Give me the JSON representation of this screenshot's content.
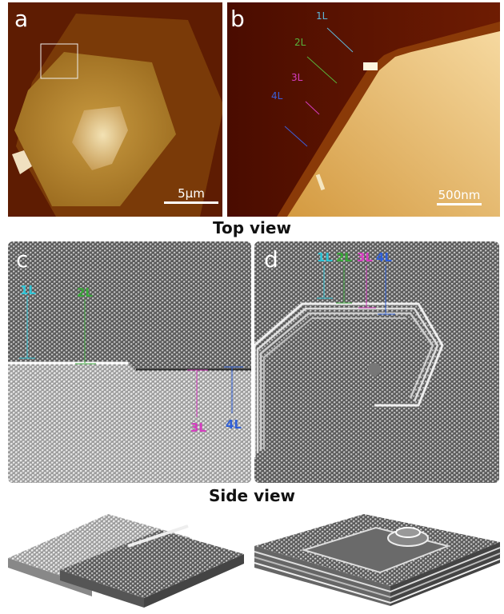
{
  "panels": {
    "a": {
      "label": "a",
      "scale_bar": "5μm"
    },
    "b": {
      "label": "b",
      "scale_bar": "500nm",
      "layers": [
        "1L",
        "2L",
        "3L",
        "4L"
      ]
    },
    "c": {
      "label": "c",
      "layers": [
        "1L",
        "2L",
        "3L",
        "4L"
      ]
    },
    "d": {
      "label": "d",
      "layers": [
        "1L",
        "2L",
        "3L",
        "4L"
      ]
    }
  },
  "captions": {
    "top": "Top view",
    "side": "Side view"
  },
  "colors": {
    "1L": "#2ec4d6",
    "2L": "#3aa83a",
    "3L": "#d63cc0",
    "4L": "#2f5fd8"
  }
}
